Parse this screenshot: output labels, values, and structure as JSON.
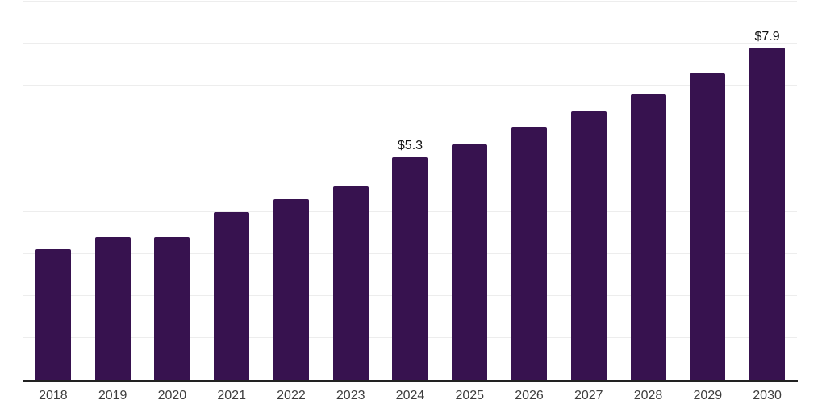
{
  "chart_data": {
    "type": "bar",
    "title": "",
    "xlabel": "",
    "ylabel": "",
    "categories": [
      "2018",
      "2019",
      "2020",
      "2021",
      "2022",
      "2023",
      "2024",
      "2025",
      "2026",
      "2027",
      "2028",
      "2029",
      "2030"
    ],
    "series": [
      {
        "name": "value",
        "values": [
          3.1,
          3.4,
          3.4,
          4.0,
          4.3,
          4.6,
          5.3,
          5.6,
          6.0,
          6.4,
          6.8,
          7.3,
          7.9
        ]
      }
    ],
    "data_labels": {
      "2024": "$5.3",
      "2030": "$7.9"
    },
    "ylim": [
      0,
      9
    ],
    "grid": "horizontal",
    "grid_step": 1,
    "y_axis_ticks_visible": false,
    "legend": "none"
  },
  "colors": {
    "bar": "#37124F",
    "gridline": "#EDEDED",
    "axis_line": "#222222",
    "tick_label": "#3D3D3D",
    "value_label": "#111111",
    "background": "#FFFFFF"
  }
}
